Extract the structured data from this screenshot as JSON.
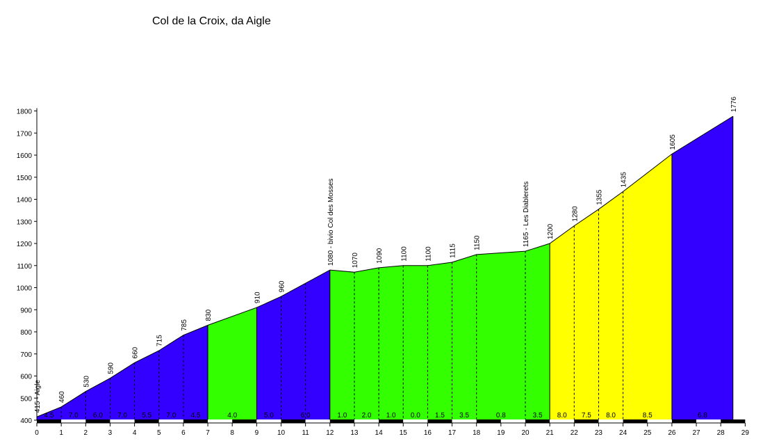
{
  "chart_data": {
    "type": "area",
    "title": "Col de la Croix, da Aigle",
    "xlabel": "",
    "ylabel": "",
    "xlim": [
      0,
      29
    ],
    "ylim": [
      400,
      1800
    ],
    "x_ticks": [
      0,
      1,
      2,
      3,
      4,
      5,
      6,
      7,
      8,
      9,
      10,
      11,
      12,
      13,
      14,
      15,
      16,
      17,
      18,
      19,
      20,
      21,
      22,
      23,
      24,
      25,
      26,
      27,
      28,
      29
    ],
    "y_ticks": [
      400,
      500,
      600,
      700,
      800,
      900,
      1000,
      1100,
      1200,
      1300,
      1400,
      1500,
      1600,
      1700,
      1800
    ],
    "profile": [
      {
        "x": 0,
        "y": 415,
        "label": "415 - Aigle"
      },
      {
        "x": 1,
        "y": 460,
        "label": "460"
      },
      {
        "x": 2,
        "y": 530,
        "label": "530"
      },
      {
        "x": 3,
        "y": 590,
        "label": "590"
      },
      {
        "x": 4,
        "y": 660,
        "label": "660"
      },
      {
        "x": 5,
        "y": 715,
        "label": "715"
      },
      {
        "x": 6,
        "y": 785,
        "label": "785"
      },
      {
        "x": 7,
        "y": 830,
        "label": "830"
      },
      {
        "x": 9,
        "y": 910,
        "label": "910"
      },
      {
        "x": 10,
        "y": 960,
        "label": "960"
      },
      {
        "x": 12,
        "y": 1080,
        "label": "1080 - bivio Col des Mosses"
      },
      {
        "x": 13,
        "y": 1070,
        "label": "1070"
      },
      {
        "x": 14,
        "y": 1090,
        "label": "1090"
      },
      {
        "x": 15,
        "y": 1100,
        "label": "1100"
      },
      {
        "x": 16,
        "y": 1100,
        "label": "1100"
      },
      {
        "x": 17,
        "y": 1115,
        "label": "1115"
      },
      {
        "x": 18,
        "y": 1150,
        "label": "1150"
      },
      {
        "x": 20,
        "y": 1165,
        "label": "1165 - Les Diablerets"
      },
      {
        "x": 21,
        "y": 1200,
        "label": "1200"
      },
      {
        "x": 22,
        "y": 1280,
        "label": "1280"
      },
      {
        "x": 23,
        "y": 1355,
        "label": "1355"
      },
      {
        "x": 24,
        "y": 1435,
        "label": "1435"
      },
      {
        "x": 26,
        "y": 1605,
        "label": "1605"
      },
      {
        "x": 28.5,
        "y": 1776,
        "label": "1776"
      }
    ],
    "segments": [
      {
        "from": 0,
        "to": 7,
        "color": "#3300ff"
      },
      {
        "from": 7,
        "to": 9,
        "color": "#33ff00"
      },
      {
        "from": 9,
        "to": 12,
        "color": "#3300ff"
      },
      {
        "from": 12,
        "to": 21,
        "color": "#33ff00"
      },
      {
        "from": 21,
        "to": 26,
        "color": "#ffff00"
      },
      {
        "from": 26,
        "to": 28.5,
        "color": "#3300ff"
      }
    ],
    "dashed_markers": [
      1,
      2,
      3,
      4,
      5,
      6,
      10,
      11,
      13,
      14,
      15,
      16,
      17,
      18,
      20,
      22,
      23,
      24
    ],
    "gradients": [
      {
        "from": 0,
        "to": 1,
        "label": "4.5"
      },
      {
        "from": 1,
        "to": 2,
        "label": "7.0"
      },
      {
        "from": 2,
        "to": 3,
        "label": "6.0"
      },
      {
        "from": 3,
        "to": 4,
        "label": "7.0"
      },
      {
        "from": 4,
        "to": 5,
        "label": "5.5"
      },
      {
        "from": 5,
        "to": 6,
        "label": "7.0"
      },
      {
        "from": 6,
        "to": 7,
        "label": "4.5"
      },
      {
        "from": 7,
        "to": 9,
        "label": "4.0"
      },
      {
        "from": 9,
        "to": 10,
        "label": "5.0"
      },
      {
        "from": 10,
        "to": 12,
        "label": "6.0"
      },
      {
        "from": 12,
        "to": 13,
        "label": "1.0"
      },
      {
        "from": 13,
        "to": 14,
        "label": "2.0"
      },
      {
        "from": 14,
        "to": 15,
        "label": "1.0"
      },
      {
        "from": 15,
        "to": 16,
        "label": "0.0"
      },
      {
        "from": 16,
        "to": 17,
        "label": "1.5"
      },
      {
        "from": 17,
        "to": 18,
        "label": "3.5"
      },
      {
        "from": 18,
        "to": 20,
        "label": "0.8"
      },
      {
        "from": 20,
        "to": 21,
        "label": "3.5"
      },
      {
        "from": 21,
        "to": 22,
        "label": "8.0"
      },
      {
        "from": 22,
        "to": 23,
        "label": "7.5"
      },
      {
        "from": 23,
        "to": 24,
        "label": "8.0"
      },
      {
        "from": 24,
        "to": 26,
        "label": "8.5"
      },
      {
        "from": 26,
        "to": 28.5,
        "label": "6.8"
      }
    ],
    "grid": false,
    "legend": "none"
  }
}
